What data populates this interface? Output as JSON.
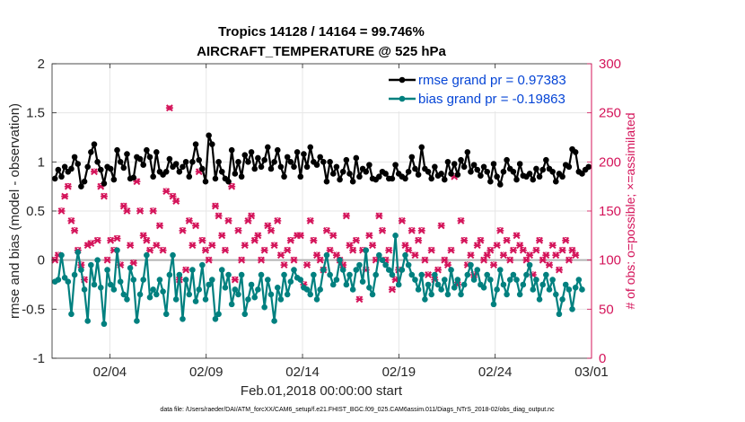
{
  "chart_data": {
    "type": "line",
    "title_line1": "Tropics 14128 / 14164 = 99.746%",
    "title_line2": "AIRCRAFT_TEMPERATURE @ 525 hPa",
    "xlabel": "Feb.01,2018 00:00:00 start",
    "ylabel_left": "rmse and bias (model - observation)",
    "ylabel_right": "# of obs: o=possible; ×=assimilated",
    "footnote": "data file: /Users/raeder/DAI/ATM_forcXX/CAM6_setup/f.e21.FHIST_BGC.f09_025.CAM6assim.011/Diags_NTrS_2018-02/obs_diag_output.nc",
    "xlim": [
      0.0,
      28.0
    ],
    "ylim_left": [
      -1,
      2
    ],
    "ylim_right": [
      0,
      300
    ],
    "x_tick_values": [
      3,
      8,
      13,
      18,
      23,
      28
    ],
    "x_tick_labels": [
      "02/04",
      "02/09",
      "02/14",
      "02/19",
      "02/24",
      "03/01"
    ],
    "y_left_tick_values": [
      -1,
      -0.5,
      0,
      0.5,
      1,
      1.5,
      2
    ],
    "y_left_tick_labels": [
      "-1",
      "-0.5",
      "0",
      "0.5",
      "1",
      "1.5",
      "2"
    ],
    "y_right_tick_values": [
      0,
      50,
      100,
      150,
      200,
      250,
      300
    ],
    "y_right_tick_labels": [
      "0",
      "50",
      "100",
      "150",
      "200",
      "250",
      "300"
    ],
    "grid": true,
    "zero_line": 0,
    "colors": {
      "rmse": "#000000",
      "bias": "#00807f",
      "obs": "#d4145a",
      "zero": "#b4b4b4",
      "legend_text": "#0645d6"
    },
    "legend": [
      {
        "name": "rmse",
        "label": "rmse grand pr = 0.97383"
      },
      {
        "name": "bias",
        "label": "bias grand pr = -0.19863"
      }
    ],
    "series": [
      {
        "name": "rmse",
        "y": [
          0.83,
          0.92,
          0.85,
          0.95,
          0.9,
          0.93,
          1.05,
          0.98,
          0.75,
          0.8,
          0.95,
          1.1,
          1.18,
          1.0,
          0.92,
          0.78,
          0.95,
          0.93,
          0.82,
          1.12,
          1.0,
          0.94,
          1.08,
          0.83,
          0.84,
          1.05,
          1.03,
          0.97,
          1.12,
          1.05,
          0.85,
          1.1,
          0.9,
          0.87,
          0.9,
          1.03,
          0.95,
          0.98,
          0.9,
          0.95,
          1.0,
          0.85,
          1.0,
          1.18,
          1.02,
          0.93,
          0.8,
          1.27,
          1.18,
          0.83,
          1.0,
          0.9,
          0.83,
          0.8,
          1.12,
          0.88,
          1.0,
          0.85,
          1.07,
          1.0,
          1.1,
          0.93,
          1.04,
          0.95,
          1.02,
          1.15,
          0.93,
          1.0,
          1.12,
          0.95,
          0.85,
          1.05,
          1.0,
          0.95,
          1.1,
          0.85,
          1.08,
          0.95,
          1.15,
          1.0,
          0.97,
          1.05,
          1.0,
          0.8,
          1.0,
          0.88,
          0.95,
          0.82,
          0.9,
          1.02,
          0.88,
          0.8,
          1.04,
          0.85,
          0.93,
          0.9,
          0.97,
          0.83,
          0.82,
          0.85,
          0.9,
          0.88,
          0.83,
          0.83,
          0.97,
          0.88,
          0.85,
          0.83,
          0.9,
          1.05,
          0.93,
          0.87,
          1.15,
          0.93,
          0.9,
          0.83,
          0.95,
          0.86,
          0.88,
          0.82,
          1.0,
          0.88,
          0.98,
          0.87,
          1.02,
          0.95,
          1.1,
          0.9,
          0.97,
          0.92,
          0.86,
          0.95,
          0.9,
          0.8,
          0.98,
          0.85,
          0.77,
          0.9,
          1.02,
          0.93,
          0.9,
          0.82,
          0.98,
          0.86,
          0.85,
          0.88,
          0.82,
          0.93,
          0.85,
          0.92,
          1.02,
          0.93,
          0.9,
          0.8,
          0.88,
          0.85,
          0.97,
          0.95,
          1.13,
          1.1,
          0.9,
          0.88,
          0.92,
          0.95
        ]
      },
      {
        "name": "bias",
        "y": [
          -0.22,
          -0.2,
          0.05,
          -0.18,
          -0.22,
          -0.55,
          -0.15,
          0.08,
          -0.1,
          -0.3,
          -0.62,
          -0.05,
          -0.25,
          0.0,
          -0.28,
          -0.65,
          -0.1,
          -0.25,
          -0.3,
          0.1,
          -0.22,
          -0.35,
          -0.4,
          -0.08,
          -0.2,
          -0.62,
          -0.35,
          -0.2,
          0.05,
          -0.38,
          -0.3,
          -0.35,
          -0.2,
          -0.32,
          -0.55,
          -0.15,
          0.05,
          -0.4,
          -0.15,
          -0.6,
          -0.2,
          -0.35,
          -0.1,
          -0.42,
          -0.3,
          -0.05,
          -0.4,
          -0.25,
          -0.2,
          -0.6,
          -0.55,
          -0.1,
          -0.28,
          -0.15,
          -0.45,
          -0.3,
          -0.35,
          -0.15,
          -0.55,
          -0.4,
          -0.25,
          -0.38,
          -0.3,
          -0.15,
          -0.48,
          -0.2,
          -0.35,
          -0.62,
          -0.28,
          -0.4,
          -0.15,
          -0.35,
          -0.22,
          -0.1,
          -0.18,
          -0.2,
          -0.28,
          -0.3,
          -0.35,
          -0.15,
          -0.4,
          -0.3,
          -0.1,
          0.05,
          -0.15,
          -0.25,
          -0.2,
          0.0,
          -0.1,
          -0.25,
          -0.15,
          -0.3,
          -0.1,
          -0.05,
          -0.22,
          0.1,
          -0.28,
          -0.35,
          -0.15,
          0.05,
          0.0,
          -0.05,
          -0.1,
          -0.15,
          0.25,
          -0.25,
          -0.1,
          0.05,
          -0.05,
          -0.15,
          -0.2,
          -0.3,
          -0.15,
          -0.4,
          -0.25,
          -0.35,
          -0.15,
          -0.25,
          -0.3,
          -0.2,
          -0.35,
          -0.1,
          -0.28,
          -0.2,
          -0.35,
          -0.25,
          -0.15,
          -0.05,
          -0.2,
          -0.1,
          -0.25,
          -0.28,
          -0.15,
          -0.2,
          -0.45,
          -0.3,
          -0.1,
          -0.25,
          -0.35,
          -0.2,
          -0.15,
          -0.2,
          -0.35,
          -0.25,
          -0.15,
          -0.05,
          -0.3,
          -0.2,
          -0.4,
          -0.25,
          -0.15,
          -0.3,
          -0.2,
          -0.35,
          -0.55,
          -0.4,
          -0.25,
          -0.3,
          -0.5,
          -0.28,
          -0.2,
          -0.3
        ]
      },
      {
        "name": "obs_assimilated",
        "y": [
          100,
          105,
          150,
          165,
          175,
          140,
          130,
          110,
          95,
          80,
          115,
          117,
          190,
          120,
          175,
          165,
          100,
          120,
          110,
          122,
          95,
          155,
          150,
          115,
          97,
          180,
          150,
          125,
          120,
          110,
          150,
          115,
          135,
          110,
          170,
          255,
          165,
          160,
          80,
          130,
          90,
          140,
          115,
          135,
          190,
          120,
          110,
          100,
          115,
          155,
          145,
          125,
          110,
          140,
          175,
          80,
          130,
          100,
          115,
          140,
          145,
          120,
          125,
          100,
          110,
          135,
          130,
          115,
          140,
          105,
          95,
          110,
          120,
          100,
          125,
          125,
          75,
          95,
          140,
          120,
          105,
          100,
          90,
          130,
          110,
          125,
          105,
          100,
          95,
          145,
          115,
          110,
          120,
          60,
          110,
          90,
          125,
          115,
          100,
          145,
          130,
          100,
          110,
          70,
          80,
          90,
          140,
          115,
          110,
          130,
          105,
          120,
          130,
          100,
          85,
          110,
          80,
          90,
          135,
          100,
          95,
          110,
          185,
          75,
          140,
          120,
          95,
          105,
          85,
          115,
          120,
          100,
          105,
          110,
          95,
          115,
          130,
          105,
          120,
          100,
          110,
          125,
          115,
          110,
          100,
          105,
          85,
          110,
          120,
          100,
          105,
          95,
          115,
          105,
          90,
          110,
          120,
          100,
          110,
          105
        ]
      },
      {
        "name": "obs_possible",
        "y": [
          101,
          106,
          151,
          165,
          176,
          141,
          131,
          111,
          96,
          81,
          116,
          118,
          191,
          121,
          176,
          166,
          101,
          121,
          111,
          123,
          96,
          156,
          151,
          116,
          98,
          181,
          151,
          126,
          121,
          111,
          151,
          116,
          136,
          111,
          171,
          255,
          166,
          161,
          81,
          131,
          91,
          141,
          116,
          136,
          191,
          121,
          111,
          101,
          116,
          156,
          146,
          126,
          111,
          141,
          176,
          81,
          131,
          101,
          116,
          141,
          146,
          121,
          126,
          101,
          111,
          136,
          131,
          116,
          141,
          106,
          96,
          111,
          121,
          101,
          126,
          126,
          76,
          96,
          141,
          121,
          106,
          101,
          91,
          131,
          111,
          126,
          106,
          101,
          96,
          146,
          116,
          111,
          121,
          61,
          111,
          91,
          126,
          116,
          101,
          146,
          131,
          101,
          111,
          71,
          81,
          91,
          141,
          116,
          111,
          131,
          106,
          121,
          131,
          101,
          86,
          111,
          81,
          91,
          136,
          101,
          96,
          111,
          186,
          76,
          141,
          121,
          96,
          106,
          86,
          116,
          121,
          101,
          106,
          111,
          96,
          116,
          131,
          106,
          121,
          101,
          111,
          126,
          116,
          111,
          101,
          106,
          86,
          111,
          121,
          101,
          106,
          96,
          116,
          106,
          91,
          111,
          121,
          101,
          111,
          106
        ]
      }
    ]
  }
}
